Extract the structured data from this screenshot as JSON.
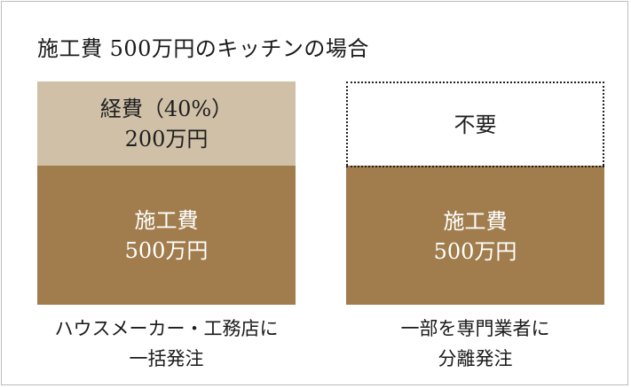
{
  "title": "施工費 500万円のキッチンの場合",
  "left": {
    "expense_line1": "経費（40%）",
    "expense_line2": "200万円",
    "cost_line1": "施工費",
    "cost_line2": "500万円",
    "caption_line1": "ハウスメーカー・工務店に",
    "caption_line2": "一括発注",
    "expense_fill_color": "#cfc0a7",
    "cost_fill_color": "#a17d4d"
  },
  "right": {
    "unneeded_label": "不要",
    "cost_line1": "施工費",
    "cost_line2": "500万円",
    "caption_line1": "一部を専門業者に",
    "caption_line2": "分離発注",
    "cost_fill_color": "#a17d4d"
  }
}
